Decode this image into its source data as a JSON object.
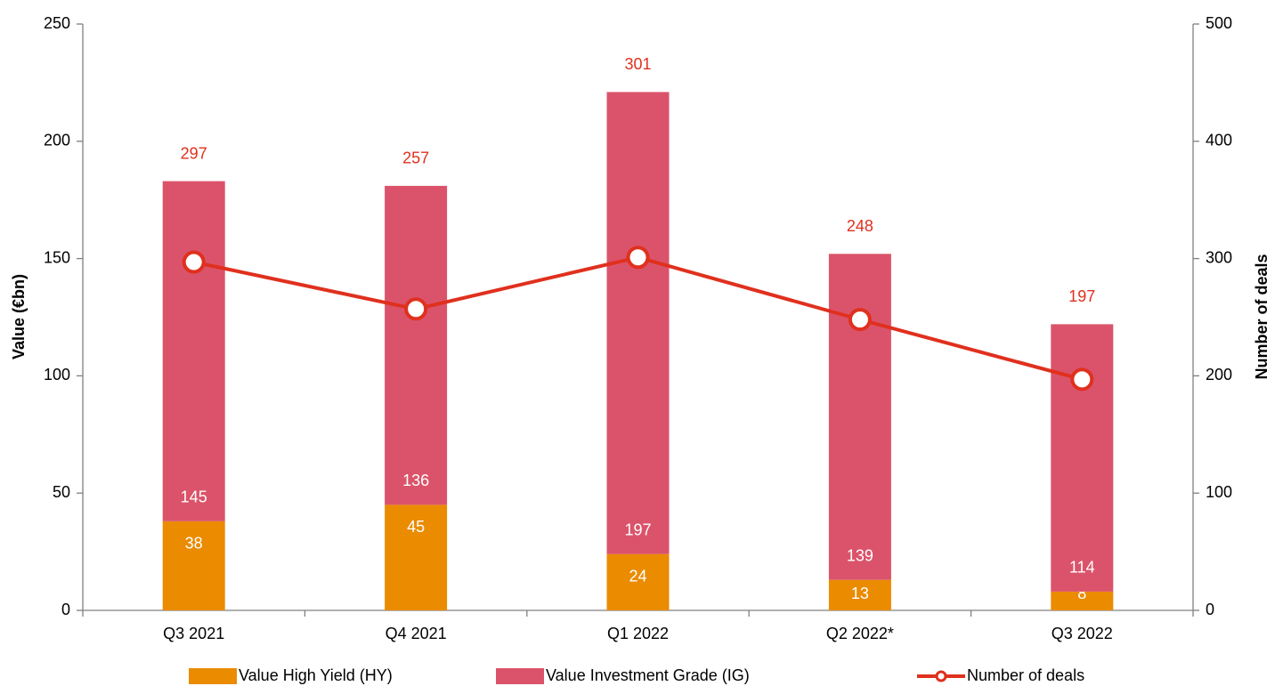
{
  "chart_data": {
    "type": "bar",
    "stacked": true,
    "categories": [
      "Q3 2021",
      "Q4 2021",
      "Q1 2022",
      "Q2 2022*",
      "Q3 2022"
    ],
    "series": [
      {
        "name": "Value High Yield (HY)",
        "color": "#ea8b00",
        "type": "bar",
        "values": [
          38,
          45,
          24,
          13,
          8
        ]
      },
      {
        "name": "Value Investment Grade (IG)",
        "color": "#db536a",
        "type": "bar",
        "values": [
          145,
          136,
          197,
          139,
          114
        ]
      },
      {
        "name": "Number of deals",
        "color": "#e0301e",
        "type": "line",
        "axis": "y2",
        "values": [
          297,
          257,
          301,
          248,
          197
        ]
      }
    ],
    "ylabel": "Value (€bn)",
    "y2label": "Number of deals",
    "ylim": [
      0,
      250
    ],
    "yticks": [
      0,
      50,
      100,
      150,
      200,
      250
    ],
    "y2lim": [
      0,
      500
    ],
    "y2ticks": [
      0,
      100,
      200,
      300,
      400,
      500
    ],
    "legend": "bottom"
  }
}
